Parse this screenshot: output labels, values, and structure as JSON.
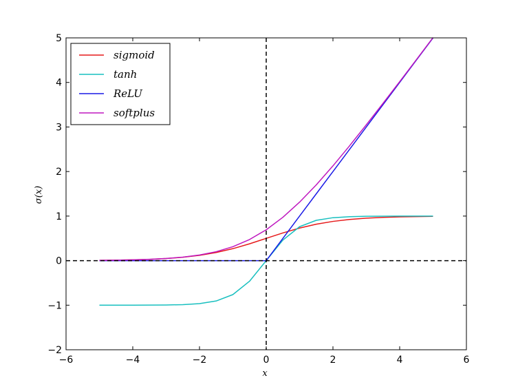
{
  "chart_data": {
    "type": "line",
    "title": "",
    "xlabel": "x",
    "ylabel": "σ(x)",
    "xlim": [
      -6,
      6
    ],
    "ylim": [
      -2,
      5
    ],
    "x_ticks": [
      -6,
      -4,
      -2,
      0,
      2,
      4,
      6
    ],
    "y_ticks": [
      -2,
      -1,
      0,
      1,
      2,
      3,
      4,
      5
    ],
    "x_tick_labels": [
      "−6",
      "−4",
      "−2",
      "0",
      "2",
      "4",
      "6"
    ],
    "y_tick_labels": [
      "−2",
      "−1",
      "0",
      "1",
      "2",
      "3",
      "4",
      "5"
    ],
    "legend_position": "top-left",
    "grid": false,
    "reference_lines": [
      {
        "orientation": "horizontal",
        "value": 0,
        "style": "dashed",
        "color": "#000000"
      },
      {
        "orientation": "vertical",
        "value": 0,
        "style": "dashed",
        "color": "#000000"
      }
    ],
    "x": [
      -5,
      -4.5,
      -4,
      -3.5,
      -3,
      -2.5,
      -2,
      -1.5,
      -1,
      -0.5,
      0,
      0.5,
      1,
      1.5,
      2,
      2.5,
      3,
      3.5,
      4,
      4.5,
      5
    ],
    "series": [
      {
        "name": "sigmoid",
        "color": "#e6191a",
        "values": [
          0.007,
          0.011,
          0.018,
          0.029,
          0.047,
          0.076,
          0.119,
          0.182,
          0.269,
          0.378,
          0.5,
          0.622,
          0.731,
          0.818,
          0.881,
          0.924,
          0.953,
          0.971,
          0.982,
          0.989,
          0.993
        ]
      },
      {
        "name": "tanh",
        "color": "#17bfbf",
        "values": [
          -1.0,
          -1.0,
          -0.999,
          -0.998,
          -0.995,
          -0.987,
          -0.964,
          -0.905,
          -0.762,
          -0.462,
          0.0,
          0.462,
          0.762,
          0.905,
          0.964,
          0.987,
          0.995,
          0.998,
          0.999,
          1.0,
          1.0
        ]
      },
      {
        "name": "ReLU",
        "color": "#1a1ae6",
        "values": [
          0,
          0,
          0,
          0,
          0,
          0,
          0,
          0,
          0,
          0,
          0,
          0.5,
          1,
          1.5,
          2,
          2.5,
          3,
          3.5,
          4,
          4.5,
          5
        ]
      },
      {
        "name": "softplus",
        "color": "#bf17bf",
        "values": [
          0.007,
          0.011,
          0.018,
          0.03,
          0.049,
          0.079,
          0.127,
          0.201,
          0.313,
          0.474,
          0.693,
          0.974,
          1.313,
          1.701,
          2.127,
          2.579,
          3.049,
          3.53,
          4.018,
          4.511,
          5.007
        ]
      }
    ]
  }
}
